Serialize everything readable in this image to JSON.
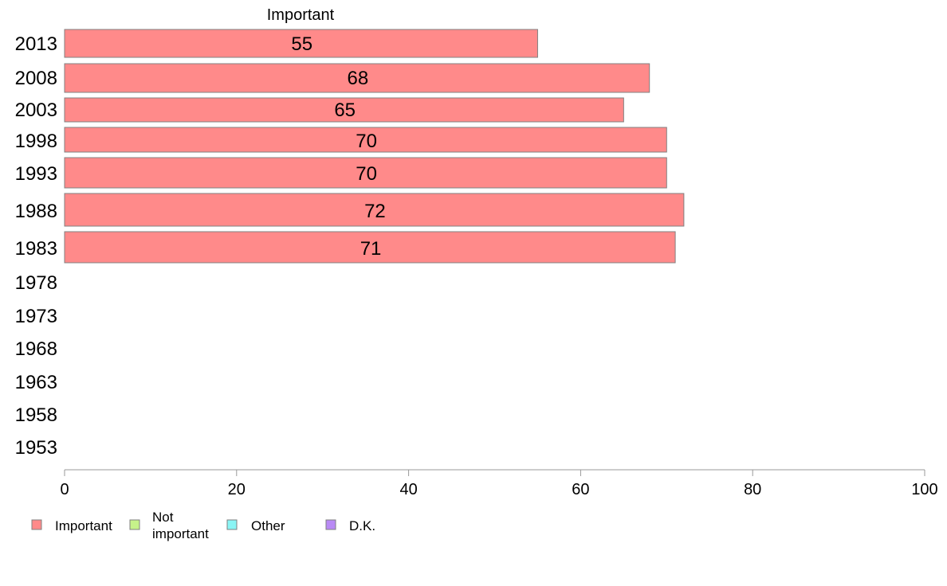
{
  "chart_data": {
    "type": "bar",
    "orientation": "horizontal",
    "series_title": "Important",
    "categories": [
      "2013",
      "2008",
      "2003",
      "1998",
      "1993",
      "1988",
      "1983",
      "1978",
      "1973",
      "1968",
      "1963",
      "1958",
      "1953"
    ],
    "series": [
      {
        "name": "Important",
        "color": "#ff8a8a",
        "values": [
          55,
          68,
          65,
          70,
          70,
          72,
          71,
          null,
          null,
          null,
          null,
          null,
          null
        ],
        "labels": [
          "55",
          "68",
          "65",
          "70",
          "70",
          "72",
          "71",
          "",
          "",
          "",
          "",
          "",
          ""
        ]
      }
    ],
    "xlim": [
      0,
      100
    ],
    "xticks": [
      "0",
      "20",
      "40",
      "60",
      "80",
      "100"
    ],
    "grid": false,
    "legend": {
      "placement": "bottom-left",
      "items": [
        {
          "label": "Important",
          "color": "#ff8a8a"
        },
        {
          "label": "Not important",
          "color": "#c6f28a"
        },
        {
          "label": "Other",
          "color": "#8af5f5"
        },
        {
          "label": "D.K.",
          "color": "#b98af5"
        }
      ]
    }
  }
}
